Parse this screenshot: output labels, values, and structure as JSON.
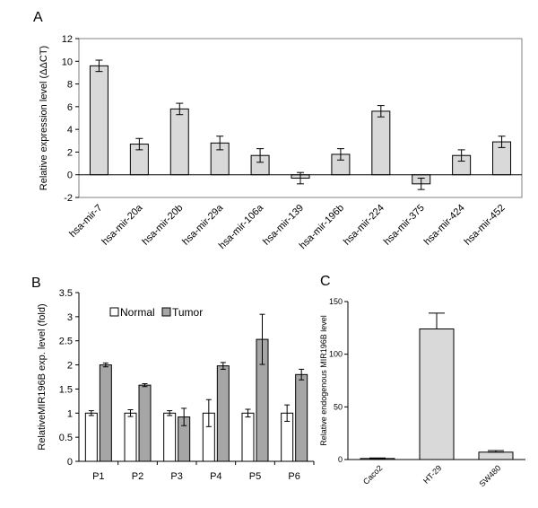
{
  "chart_data": [
    {
      "panel": "A",
      "type": "bar",
      "title": "",
      "xlabel": "",
      "ylabel": "Relative expression level (ΔΔCT)",
      "ylim": [
        -2,
        12
      ],
      "yticks": [
        -2,
        0,
        2,
        4,
        6,
        8,
        10,
        12
      ],
      "categories": [
        "hsa-mir-7",
        "hsa-mir-20a",
        "hsa-mir-20b",
        "hsa-mir-29a",
        "hsa-mir-106a",
        "hsa-mir-139",
        "hsa-mir-196b",
        "hsa-mir-224",
        "hsa-mir-375",
        "hsa-mir-424",
        "hsa-mir-452"
      ],
      "values": [
        9.6,
        2.7,
        5.8,
        2.8,
        1.7,
        -0.3,
        1.8,
        5.6,
        -0.8,
        1.7,
        2.9
      ],
      "errors": [
        0.5,
        0.5,
        0.5,
        0.6,
        0.6,
        0.5,
        0.5,
        0.5,
        0.5,
        0.5,
        0.5
      ],
      "grid": false,
      "colors": {
        "bar": "#d9d9d9",
        "edge": "#000000"
      }
    },
    {
      "panel": "B",
      "type": "bar",
      "title": "",
      "xlabel": "",
      "ylabel": "RelativeMIR196B exp. level (fold)",
      "ylim": [
        0,
        3.5
      ],
      "yticks": [
        0,
        0.5,
        1,
        1.5,
        2,
        2.5,
        3,
        3.5
      ],
      "categories": [
        "P1",
        "P2",
        "P3",
        "P4",
        "P5",
        "P6"
      ],
      "series": [
        {
          "name": "Normal",
          "values": [
            1.0,
            1.0,
            1.0,
            1.0,
            1.0,
            1.0
          ],
          "errors": [
            0.05,
            0.07,
            0.05,
            0.28,
            0.08,
            0.17
          ],
          "color": "#ffffff"
        },
        {
          "name": "Tumor",
          "values": [
            2.0,
            1.58,
            0.92,
            1.98,
            2.53,
            1.8
          ],
          "errors": [
            0.04,
            0.03,
            0.18,
            0.07,
            0.52,
            0.11
          ],
          "color": "#a6a6a6"
        }
      ],
      "legend": "top-left",
      "grid": false
    },
    {
      "panel": "C",
      "type": "bar",
      "title": "",
      "xlabel": "",
      "ylabel": "Relative endogenous MIR196B level",
      "ylim": [
        0,
        150
      ],
      "yticks": [
        0,
        50,
        100,
        150
      ],
      "categories": [
        "Caco2",
        "HT-29",
        "SW480"
      ],
      "values": [
        1,
        124,
        7
      ],
      "errors": [
        0.5,
        15,
        1.5
      ],
      "grid": false,
      "colors": {
        "bar": "#d9d9d9",
        "edge": "#000000"
      }
    }
  ]
}
